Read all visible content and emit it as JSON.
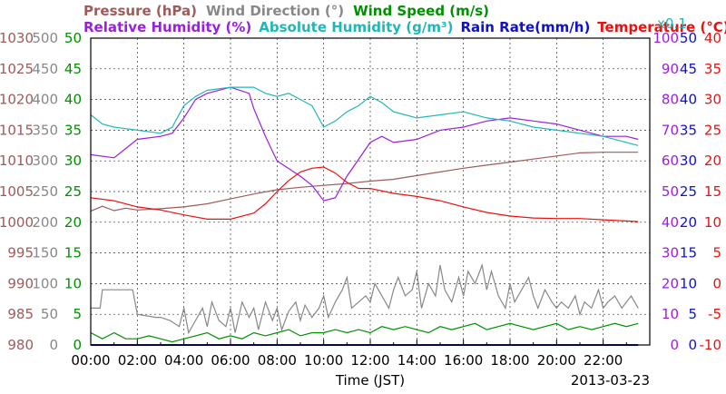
{
  "chart_data": {
    "type": "line",
    "date": "2013-03-23",
    "xlabel": "Time (JST)",
    "x_ticks": [
      "00:00",
      "02:00",
      "04:00",
      "06:00",
      "08:00",
      "10:00",
      "12:00",
      "14:00",
      "16:00",
      "18:00",
      "20:00",
      "22:00"
    ],
    "xlim_hours": [
      0,
      24
    ],
    "grid": true,
    "legend_line1": [
      {
        "label": "Pressure (hPa)",
        "color": "#a05a5a"
      },
      {
        "label": "Wind Direction (°)",
        "color": "#888888"
      },
      {
        "label": "Wind Speed (m/s)",
        "color": "#009000"
      }
    ],
    "legend_line2": [
      {
        "label": "Relative Humidity (%)",
        "color": "#9a1fe0"
      },
      {
        "label": "Absolute Humidity (g/m³)",
        "color": "#1fb8b8"
      },
      {
        "label": "Rain Rate(mm/h)",
        "color": "#1010d0"
      },
      {
        "label": "Temperature (°C)",
        "color": "#ee1010"
      }
    ],
    "abs_humidity_scale_note": "x0.1",
    "axes": {
      "pressure": {
        "color": "#a05a5a",
        "range": [
          980,
          1030
        ],
        "ticks": [
          "1030",
          "1025",
          "1020",
          "1015",
          "1010",
          "1005",
          "1000",
          "995",
          "990",
          "985",
          "980"
        ]
      },
      "wind_direction": {
        "color": "#888888",
        "range": [
          0,
          500
        ],
        "ticks": [
          "500",
          "450",
          "400",
          "350",
          "300",
          "250",
          "200",
          "150",
          "100",
          "50",
          "0"
        ]
      },
      "wind_speed": {
        "color": "#009000",
        "range": [
          0,
          50
        ],
        "ticks": [
          "50",
          "45",
          "40",
          "35",
          "30",
          "25",
          "20",
          "15",
          "10",
          "5",
          "0"
        ]
      },
      "relative_humidity": {
        "color": "#9a1fe0",
        "range": [
          0,
          100
        ],
        "ticks": [
          "100",
          "90",
          "80",
          "70",
          "60",
          "50",
          "40",
          "30",
          "20",
          "10",
          "0"
        ]
      },
      "rain_rate": {
        "color": "#1010d0",
        "range": [
          0,
          50
        ],
        "ticks": [
          "50",
          "45",
          "40",
          "35",
          "30",
          "25",
          "20",
          "15",
          "10",
          "5",
          "0"
        ]
      },
      "temperature": {
        "color": "#ee1010",
        "range": [
          -10,
          40
        ],
        "ticks": [
          "40",
          "35",
          "30",
          "25",
          "20",
          "15",
          "10",
          "5",
          "0",
          "-5",
          "-10"
        ]
      }
    },
    "series": [
      {
        "name": "Pressure",
        "axis": "pressure",
        "color": "#a05a5a",
        "x": [
          0,
          0.5,
          1,
          1.5,
          2,
          3,
          4,
          5,
          6,
          7,
          8,
          9,
          10,
          11,
          12,
          13,
          14,
          15,
          16,
          17,
          18,
          19,
          20,
          21,
          22,
          23.5
        ],
        "y": [
          1001.8,
          1002.6,
          1001.9,
          1002.3,
          1002.0,
          1002.2,
          1002.5,
          1003.0,
          1003.8,
          1004.6,
          1005.3,
          1005.7,
          1006.0,
          1006.3,
          1006.7,
          1007.0,
          1007.6,
          1008.2,
          1008.8,
          1009.3,
          1009.8,
          1010.3,
          1010.8,
          1011.3,
          1011.4,
          1011.4
        ]
      },
      {
        "name": "Wind Direction",
        "axis": "wind_direction",
        "color": "#888888",
        "x": [
          0,
          0.4,
          0.5,
          1.8,
          2,
          2.8,
          3.0,
          3.4,
          3.8,
          4.0,
          4.2,
          4.5,
          4.8,
          5,
          5.2,
          5.5,
          5.8,
          6,
          6.2,
          6.5,
          6.8,
          7,
          7.2,
          7.5,
          7.8,
          8,
          8.2,
          8.5,
          8.8,
          9,
          9.2,
          9.5,
          9.8,
          10,
          10.2,
          10.5,
          10.8,
          11,
          11.2,
          11.5,
          11.8,
          12,
          12.2,
          12.5,
          12.8,
          13,
          13.2,
          13.5,
          13.8,
          14,
          14.2,
          14.5,
          14.8,
          15,
          15.2,
          15.5,
          15.8,
          16,
          16.2,
          16.5,
          16.8,
          17,
          17.2,
          17.5,
          17.8,
          18,
          18.2,
          18.5,
          18.8,
          19,
          19.2,
          19.5,
          19.8,
          20,
          20.2,
          20.5,
          20.8,
          21,
          21.2,
          21.5,
          21.8,
          22,
          22.2,
          22.5,
          22.8,
          23,
          23.2,
          23.5
        ],
        "y": [
          60,
          60,
          90,
          90,
          50,
          45,
          45,
          40,
          30,
          60,
          20,
          40,
          60,
          30,
          70,
          40,
          30,
          60,
          20,
          70,
          45,
          60,
          25,
          70,
          40,
          60,
          25,
          55,
          70,
          40,
          65,
          45,
          60,
          80,
          45,
          70,
          90,
          110,
          60,
          70,
          80,
          70,
          100,
          80,
          60,
          90,
          110,
          80,
          90,
          120,
          60,
          100,
          80,
          130,
          90,
          70,
          110,
          80,
          120,
          100,
          130,
          90,
          120,
          80,
          60,
          100,
          70,
          90,
          110,
          80,
          60,
          90,
          70,
          60,
          70,
          60,
          80,
          50,
          70,
          60,
          90,
          60,
          70,
          80,
          60,
          70,
          80,
          60
        ]
      },
      {
        "name": "Wind Speed",
        "axis": "wind_speed",
        "color": "#009000",
        "x": [
          0,
          0.5,
          1,
          1.5,
          2,
          2.5,
          3,
          3.5,
          4,
          4.5,
          5,
          5.5,
          6,
          6.5,
          7,
          7.5,
          8,
          8.5,
          9,
          9.5,
          10,
          10.5,
          11,
          11.5,
          12,
          12.5,
          13,
          13.5,
          14,
          14.5,
          15,
          15.5,
          16,
          16.5,
          17,
          17.5,
          18,
          18.5,
          19,
          19.5,
          20,
          20.5,
          21,
          21.5,
          22,
          22.5,
          23,
          23.5
        ],
        "y": [
          2,
          1,
          2,
          1,
          1,
          1.5,
          1,
          0.5,
          1,
          1.5,
          2,
          1,
          1.5,
          1,
          2,
          1.5,
          2,
          2.5,
          1.5,
          2,
          2,
          2.5,
          2,
          2.5,
          2,
          3,
          2.5,
          3,
          2.5,
          2,
          3,
          2.5,
          3,
          3.5,
          2.5,
          3,
          3.5,
          3,
          2.5,
          3,
          3.5,
          2.5,
          3,
          2.5,
          3,
          3.5,
          3,
          3.5
        ]
      },
      {
        "name": "Relative Humidity",
        "axis": "relative_humidity",
        "color": "#9a1fe0",
        "x": [
          0,
          1,
          2,
          3,
          3.5,
          4,
          4.5,
          5,
          6,
          6.8,
          7,
          7.5,
          8,
          9,
          9.5,
          10,
          10.5,
          11,
          12,
          12.5,
          13,
          14,
          15,
          16,
          17,
          18,
          19,
          20,
          21,
          22,
          23,
          23.5
        ],
        "y": [
          62,
          61,
          67,
          68,
          69,
          74,
          80,
          82,
          84,
          82,
          77,
          68,
          60,
          55,
          52,
          47,
          48,
          55,
          66,
          68,
          66,
          67,
          70,
          71,
          73,
          74,
          73,
          72,
          70,
          68,
          68,
          67
        ]
      },
      {
        "name": "Absolute Humidity",
        "axis": "wind_speed",
        "color": "#1fb8b8",
        "x": [
          0,
          0.5,
          1,
          2,
          3,
          3.5,
          4,
          4.5,
          5,
          6,
          7,
          7.5,
          8,
          8.5,
          9,
          9.5,
          10,
          10.5,
          11,
          11.5,
          12,
          12.5,
          13,
          13.5,
          14,
          15,
          16,
          17,
          18,
          19,
          20,
          21,
          22,
          23,
          23.5
        ],
        "y": [
          37.5,
          36,
          35.5,
          35,
          34.5,
          35.5,
          39,
          40.5,
          41.5,
          42,
          42,
          41,
          40.5,
          41,
          40,
          39,
          35.5,
          36.5,
          38,
          39,
          40.5,
          39.5,
          38,
          37.5,
          37,
          37.5,
          38,
          37,
          36.5,
          35.5,
          35,
          34.5,
          34,
          33,
          32.5
        ]
      },
      {
        "name": "Temperature",
        "axis": "temperature",
        "color": "#ee1010",
        "x": [
          0,
          1,
          2,
          3,
          4,
          5,
          6,
          7,
          7.5,
          8,
          8.5,
          9,
          9.5,
          10,
          10.5,
          11,
          11.5,
          12,
          13,
          14,
          15,
          16,
          17,
          18,
          19,
          20,
          21,
          22,
          23,
          23.5
        ],
        "y": [
          14,
          13.5,
          12.5,
          12,
          11.2,
          10.5,
          10.5,
          11.5,
          13,
          15,
          16.8,
          18.2,
          18.8,
          19,
          18,
          16.5,
          15.5,
          15.5,
          14.7,
          14.2,
          13.5,
          12.5,
          11.6,
          11,
          10.7,
          10.6,
          10.6,
          10.4,
          10.2,
          10.1
        ]
      },
      {
        "name": "Rain Rate",
        "axis": "rain_rate",
        "color": "#1010d0",
        "x": [
          0,
          23.5
        ],
        "y": [
          0,
          0
        ]
      }
    ]
  }
}
